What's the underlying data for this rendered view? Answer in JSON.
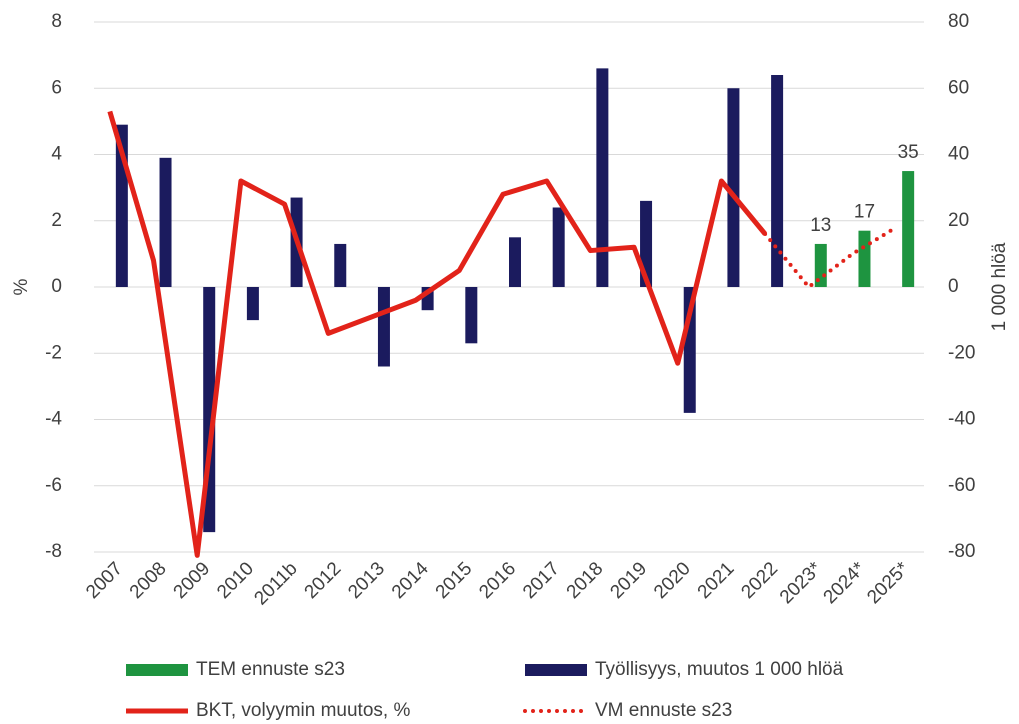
{
  "chart_data": {
    "type": "bar_line",
    "categories": [
      "2007",
      "2008",
      "2009",
      "2010",
      "2011b",
      "2012",
      "2013",
      "2014",
      "2015",
      "2016",
      "2017",
      "2018",
      "2019",
      "2020",
      "2021",
      "2022",
      "2023*",
      "2024*",
      "2025*"
    ],
    "ylabel": "%",
    "y2label": "1 000 hlöä",
    "ylim": [
      -8,
      8
    ],
    "yticks": [
      -8,
      -6,
      -4,
      -2,
      0,
      2,
      4,
      6,
      8
    ],
    "y2lim": [
      -80,
      80
    ],
    "y2ticks": [
      -80,
      -60,
      -40,
      -20,
      0,
      20,
      40,
      60,
      80
    ],
    "grid": true,
    "series": [
      {
        "name": "TEM ennuste s23",
        "type": "bar",
        "axis": "y2",
        "color": "#1e9440",
        "values": [
          null,
          null,
          null,
          null,
          null,
          null,
          null,
          null,
          null,
          null,
          null,
          null,
          null,
          null,
          null,
          null,
          13,
          17,
          35
        ]
      },
      {
        "name": "Työllisyys, muutos 1 000 hlöä",
        "type": "bar",
        "axis": "y2",
        "color": "#1b1b5e",
        "values": [
          49,
          39,
          -74,
          -10,
          27,
          13,
          -24,
          -7,
          -17,
          15,
          24,
          66,
          26,
          -38,
          60,
          64,
          null,
          null,
          null
        ]
      },
      {
        "name": "BKT, volyymin muutos, %",
        "type": "line",
        "color": "#e2231a",
        "values": [
          5.3,
          0.8,
          -8.1,
          3.2,
          2.5,
          -1.4,
          -0.9,
          -0.4,
          0.5,
          2.8,
          3.2,
          1.1,
          1.2,
          -2.3,
          3.2,
          1.6,
          null,
          null,
          null
        ]
      },
      {
        "name": "VM ennuste s23",
        "type": "line",
        "dotted": true,
        "color": "#e2231a",
        "values": [
          null,
          null,
          null,
          null,
          null,
          null,
          null,
          null,
          null,
          null,
          null,
          null,
          null,
          null,
          null,
          1.6,
          0.0,
          1.0,
          1.8
        ]
      }
    ]
  }
}
